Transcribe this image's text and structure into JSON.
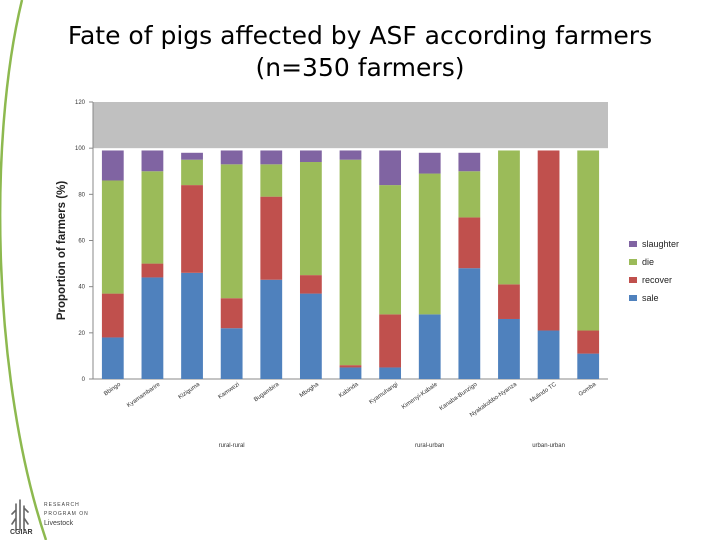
{
  "slide": {
    "title": "Fate of pigs affected by ASF according farmers (n=350 farmers)"
  },
  "logo": {
    "line1": "RESEARCH",
    "line2": "PROGRAM ON",
    "line3": "Livestock",
    "brand": "CGIAR"
  },
  "colors": {
    "sale": "#4F81BD",
    "recover": "#C0504D",
    "die": "#9BBB59",
    "slaughter": "#8064A2",
    "top_band": "#C0C0C0",
    "arc": "#8DB94F"
  },
  "chart_data": {
    "type": "bar",
    "stacked": true,
    "title": "Fate of pigs affected by ASF according farmers (n=350 farmers)",
    "ylabel": "Proportion of farmers (%)",
    "xlabel": "",
    "ylim": [
      0,
      120
    ],
    "yticks": [
      0,
      20,
      40,
      60,
      80,
      100,
      120
    ],
    "categories": [
      "Bbingo",
      "Kyamambarire",
      "Kiziguma",
      "Kamwezi",
      "Bugambira",
      "Mbogha",
      "Kabinda",
      "Kyamuhangi",
      "Kimenyi-Kabale",
      "Kanaba-Bunzigo",
      "Nyakakobbo-Nyanza",
      "Mulindo TC",
      "Gomba"
    ],
    "groups": [
      {
        "label": "rural-rural",
        "categories": [
          "Bbingo",
          "Kyamambarire",
          "Kiziguma",
          "Kamwezi",
          "Bugambira",
          "Mbogha",
          "Kabinda"
        ]
      },
      {
        "label": "rural-urban",
        "categories": [
          "Kyamuhangi",
          "Kimenyi-Kabale",
          "Kanaba-Bunzigo"
        ]
      },
      {
        "label": "urban-urban",
        "categories": [
          "Nyakakobbo-Nyanza",
          "Mulindo TC",
          "Gomba"
        ]
      }
    ],
    "series": [
      {
        "name": "sale",
        "values": [
          18,
          44,
          46,
          22,
          43,
          37,
          5,
          5,
          28,
          48,
          26,
          21,
          11
        ]
      },
      {
        "name": "recover",
        "values": [
          19,
          6,
          38,
          13,
          36,
          8,
          1,
          23,
          0,
          22,
          15,
          78,
          10
        ]
      },
      {
        "name": "die",
        "values": [
          49,
          40,
          11,
          58,
          14,
          49,
          89,
          56,
          61,
          20,
          58,
          0,
          78
        ]
      },
      {
        "name": "slaughter",
        "values": [
          13,
          9,
          3,
          6,
          6,
          5,
          4,
          15,
          9,
          8,
          0,
          0,
          0
        ]
      }
    ],
    "legend": {
      "position": "right",
      "order": [
        "slaughter",
        "die",
        "recover",
        "sale"
      ]
    }
  }
}
